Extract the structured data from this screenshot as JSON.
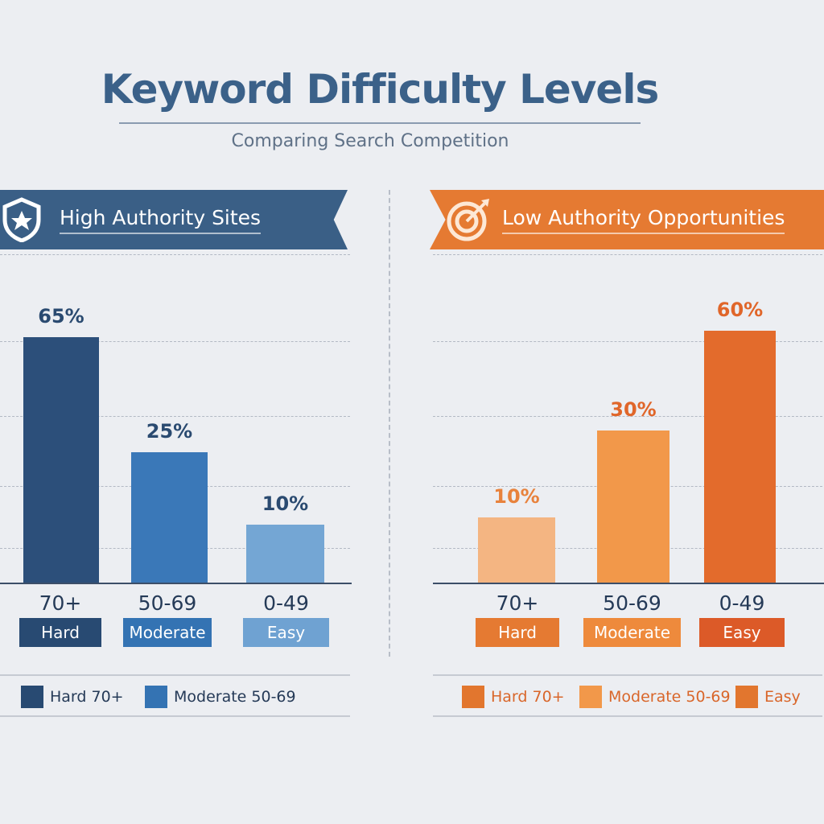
{
  "title": "Keyword Difficulty Levels",
  "subtitle": "Comparing Search Competition",
  "colors": {
    "title": "#3b6189",
    "navy": "#2a4a70",
    "blue": "#3a78b8",
    "lightblue": "#74a6d4",
    "orange_dark": "#e0662a",
    "orange": "#f2984a",
    "orange_light": "#f4b582"
  },
  "chart_data": [
    {
      "type": "bar",
      "title": "High Authority Sites",
      "icon": "shield-star-icon",
      "categories": [
        "70+",
        "50-69",
        "0-49"
      ],
      "badges": [
        "Hard",
        "Moderate",
        "Easy"
      ],
      "values": [
        65,
        25,
        10
      ],
      "data_labels": [
        "65%",
        "25%",
        "10%"
      ],
      "bar_colors": [
        "#2c4f7a",
        "#3a78b8",
        "#74a6d4"
      ],
      "grid": true,
      "legend": [
        {
          "label": "Hard 70+",
          "color": "#284a72"
        },
        {
          "label": "Moderate 50-69",
          "color": "#3473b3"
        }
      ]
    },
    {
      "type": "bar",
      "title": "Low Authority Opportunities",
      "icon": "target-arrow-icon",
      "categories": [
        "70+",
        "50-69",
        "0-49"
      ],
      "badges": [
        "Hard",
        "Moderate",
        "Easy"
      ],
      "values": [
        10,
        30,
        60
      ],
      "data_labels": [
        "10%",
        "30%",
        "60%"
      ],
      "bar_colors": [
        "#f4b582",
        "#f2984a",
        "#e36b2c"
      ],
      "grid": true,
      "legend": [
        {
          "label": "Hard 70+",
          "color": "#e2762e"
        },
        {
          "label": "Moderate 50-69",
          "color": "#f2984a"
        },
        {
          "label": "Easy",
          "color": "#e2762e"
        }
      ]
    }
  ]
}
